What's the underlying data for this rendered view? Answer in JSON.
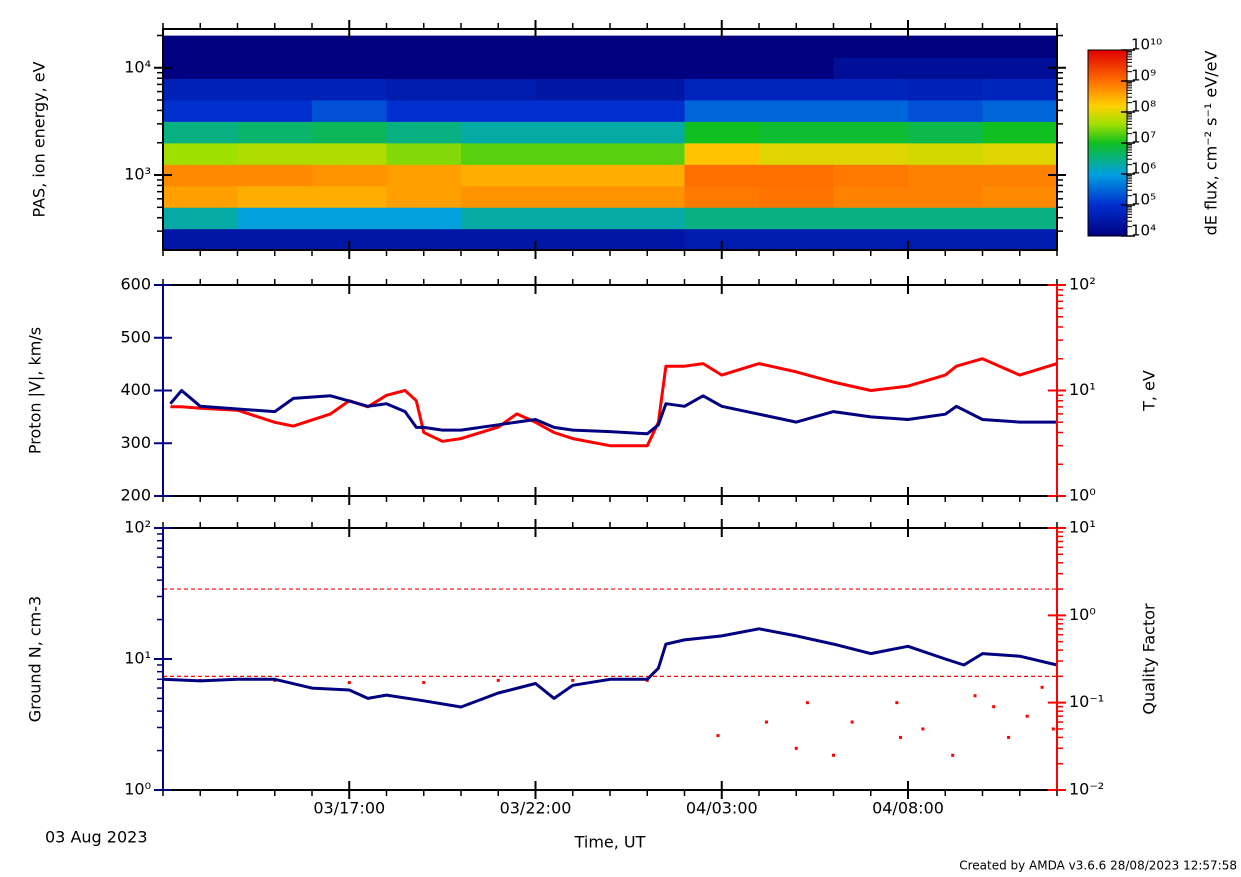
{
  "date": "03 Aug 2023",
  "footer": "Created by AMDA v3.6.6 28/08/2023 12:57:58",
  "chart_data": [
    {
      "type": "heatmap",
      "ylabel": "PAS, ion energy, eV",
      "xlim": [
        12,
        36
      ],
      "ylog": true,
      "ylim": [
        200,
        23000
      ],
      "yticks": [
        {
          "value": 1000,
          "label": "10³"
        },
        {
          "value": 10000,
          "label": "10⁴"
        }
      ],
      "x_edges": [
        12,
        14,
        16,
        18,
        20,
        22,
        24,
        26,
        28,
        30,
        32,
        34,
        36
      ],
      "y_edges": [
        200,
        316,
        501,
        794,
        1259,
        1995,
        3162,
        5012,
        7943,
        12589,
        19953
      ],
      "z": [
        [
          30000.0,
          2000000.0,
          400000000.0,
          600000000.0,
          40000000.0,
          3000000.0,
          100000.0,
          50000.0,
          10000.0,
          10000.0
        ],
        [
          30000.0,
          1000000.0,
          300000000.0,
          600000000.0,
          50000000.0,
          4000000.0,
          100000.0,
          50000.0,
          10000.0,
          10000.0
        ],
        [
          30000.0,
          1000000.0,
          300000000.0,
          500000000.0,
          50000000.0,
          5000000.0,
          200000.0,
          50000.0,
          10000.0,
          10000.0
        ],
        [
          30000.0,
          1000000.0,
          400000000.0,
          400000000.0,
          30000000.0,
          3000000.0,
          100000.0,
          40000.0,
          10000.0,
          10000.0
        ],
        [
          30000.0,
          2000000.0,
          500000000.0,
          300000000.0,
          20000000.0,
          2000000.0,
          100000.0,
          40000.0,
          10000.0,
          10000.0
        ],
        [
          30000.0,
          2000000.0,
          500000000.0,
          300000000.0,
          20000000.0,
          2000000.0,
          100000.0,
          30000.0,
          10000.0,
          10000.0
        ],
        [
          30000.0,
          2000000.0,
          500000000.0,
          300000000.0,
          20000000.0,
          2000000.0,
          100000.0,
          30000.0,
          10000.0,
          10000.0
        ],
        [
          40000.0,
          3000000.0,
          800000000.0,
          1000000000.0,
          200000000.0,
          10000000.0,
          300000.0,
          60000.0,
          10000.0,
          10000.0
        ],
        [
          40000.0,
          3000000.0,
          900000000.0,
          1000000000.0,
          100000000.0,
          8000000.0,
          300000.0,
          60000.0,
          10000.0,
          10000.0
        ],
        [
          40000.0,
          3000000.0,
          700000000.0,
          800000000.0,
          100000000.0,
          8000000.0,
          300000.0,
          60000.0,
          20000.0,
          10000.0
        ],
        [
          40000.0,
          3000000.0,
          700000000.0,
          700000000.0,
          80000000.0,
          6000000.0,
          200000.0,
          50000.0,
          20000.0,
          10000.0
        ],
        [
          40000.0,
          3000000.0,
          600000000.0,
          700000000.0,
          100000000.0,
          10000000.0,
          300000.0,
          60000.0,
          20000.0,
          10000.0
        ]
      ],
      "colorbar": {
        "label": "dE flux, cm⁻² s⁻¹ eV/eV",
        "zlim": [
          10000,
          10000000000
        ],
        "ticks": [
          {
            "value": 10000,
            "label": "10⁴"
          },
          {
            "value": 100000,
            "label": "10⁵"
          },
          {
            "value": 1000000,
            "label": "10⁶"
          },
          {
            "value": 10000000,
            "label": "10⁷"
          },
          {
            "value": 100000000,
            "label": "10⁸"
          },
          {
            "value": 1000000000,
            "label": "10⁹"
          },
          {
            "value": 10000000000,
            "label": "10¹⁰"
          }
        ]
      }
    },
    {
      "type": "line",
      "xlim": [
        12,
        36
      ],
      "ylabel": "Proton |V|, km/s",
      "y2label": "T, eV",
      "ylim": [
        200,
        600
      ],
      "yticks": [
        200,
        300,
        400,
        500,
        600
      ],
      "y2log": true,
      "y2lim": [
        1,
        100
      ],
      "y2ticks": [
        {
          "value": 1,
          "label": "10⁰"
        },
        {
          "value": 10,
          "label": "10¹"
        },
        {
          "value": 100,
          "label": "10²"
        }
      ],
      "series": [
        {
          "color": "#ff0000",
          "axis": "y2",
          "style": "line",
          "x": [
            12.2,
            12.5,
            13,
            14,
            15,
            15.5,
            16.5,
            17,
            17.5,
            18,
            18.5,
            18.8,
            19,
            19.5,
            20,
            21,
            21.5,
            22,
            22.5,
            23,
            24,
            25,
            25.3,
            25.5,
            26,
            26.5,
            27,
            28,
            29,
            30,
            31,
            32,
            33,
            33.3,
            34,
            35,
            36
          ],
          "values": [
            7,
            7,
            6.8,
            6.5,
            5,
            4.6,
            6,
            8,
            7,
            9,
            10,
            8,
            4,
            3.3,
            3.5,
            4.5,
            6,
            5,
            4,
            3.5,
            3,
            3,
            5,
            17,
            17,
            18,
            14,
            18,
            15,
            12,
            10,
            11,
            14,
            17,
            20,
            14,
            18
          ]
        },
        {
          "color": "#000080",
          "axis": "y",
          "style": "line",
          "x": [
            12.2,
            12.5,
            13,
            14,
            15,
            15.5,
            16.5,
            17,
            17.5,
            18,
            18.5,
            18.8,
            19,
            19.5,
            20,
            21,
            21.5,
            22,
            22.5,
            23,
            24,
            25,
            25.3,
            25.5,
            26,
            26.5,
            27,
            28,
            29,
            30,
            31,
            32,
            33,
            33.3,
            34,
            35,
            36
          ],
          "values": [
            375,
            400,
            370,
            365,
            360,
            385,
            390,
            380,
            370,
            375,
            360,
            330,
            330,
            325,
            325,
            335,
            340,
            345,
            330,
            325,
            322,
            318,
            335,
            375,
            370,
            390,
            370,
            355,
            340,
            360,
            350,
            345,
            355,
            370,
            345,
            340,
            340
          ]
        }
      ]
    },
    {
      "type": "line",
      "xlim": [
        12,
        36
      ],
      "ylabel": "Ground N, cm-3",
      "y2label": "Quality Factor",
      "xlabel": "Time, UT",
      "xticks": [
        {
          "value": 17,
          "label": "03/17:00"
        },
        {
          "value": 22,
          "label": "03/22:00"
        },
        {
          "value": 27,
          "label": "04/03:00"
        },
        {
          "value": 32,
          "label": "04/08:00"
        }
      ],
      "ylog": true,
      "ylim": [
        1,
        100
      ],
      "yticks": [
        {
          "value": 1,
          "label": "10⁰"
        },
        {
          "value": 10,
          "label": "10¹"
        },
        {
          "value": 100,
          "label": "10²"
        }
      ],
      "y2log": true,
      "y2lim": [
        0.01,
        10
      ],
      "y2ticks": [
        {
          "value": 0.01,
          "label": "10⁻²"
        },
        {
          "value": 0.1,
          "label": "10⁻¹"
        },
        {
          "value": 1,
          "label": "10⁰"
        },
        {
          "value": 10,
          "label": "10¹"
        }
      ],
      "reference_lines": {
        "axis": "y2",
        "color": "#ff0000",
        "dashed": true,
        "values": [
          2,
          0.2
        ]
      },
      "series": [
        {
          "color": "#ff0000",
          "axis": "y2",
          "style": "points",
          "x": [
            13,
            15,
            17,
            19,
            21,
            23,
            25,
            26.9,
            28.2,
            29,
            29.3,
            30,
            30.5,
            31.7,
            31.8,
            32.4,
            33.2,
            33.8,
            34.3,
            34.7,
            35.2,
            35.6,
            35.9
          ],
          "values": [
            0.18,
            0.18,
            0.17,
            0.17,
            0.18,
            0.18,
            0.18,
            0.042,
            0.06,
            0.03,
            0.1,
            0.025,
            0.06,
            0.1,
            0.04,
            0.05,
            0.025,
            0.12,
            0.09,
            0.04,
            0.07,
            0.15,
            0.05
          ]
        },
        {
          "color": "#000080",
          "axis": "y",
          "style": "line",
          "x": [
            12,
            13,
            14,
            15,
            16,
            17,
            17.5,
            18,
            19,
            20,
            21,
            22,
            22.5,
            23,
            24,
            25,
            25.3,
            25.5,
            26,
            27,
            28,
            29,
            30,
            31,
            32,
            33,
            33.5,
            34,
            35,
            36
          ],
          "values": [
            7,
            6.8,
            7,
            7,
            6,
            5.8,
            5,
            5.3,
            4.8,
            4.3,
            5.5,
            6.5,
            5,
            6.3,
            7,
            7,
            8.5,
            13,
            14,
            15,
            17,
            15,
            13,
            11,
            12.5,
            10,
            9,
            11,
            10.5,
            9
          ]
        }
      ]
    }
  ]
}
